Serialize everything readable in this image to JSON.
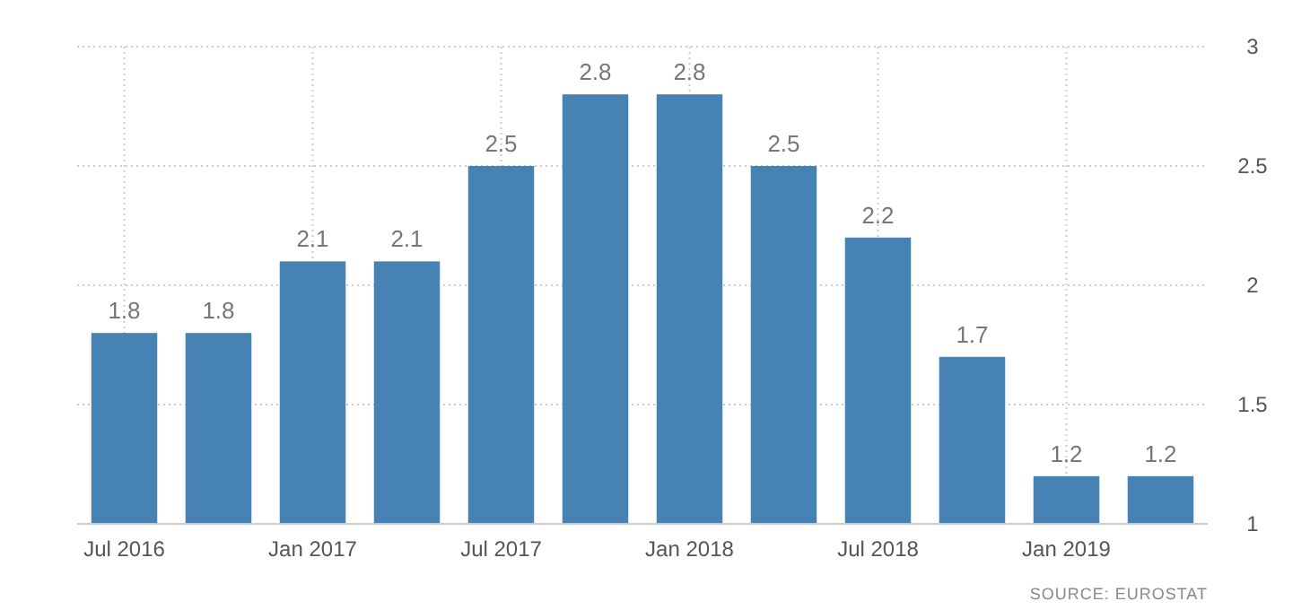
{
  "chart_data": {
    "type": "bar",
    "categories": [
      "Jul 2016",
      null,
      "Jan 2017",
      null,
      "Jul 2017",
      null,
      "Jan 2018",
      null,
      "Jul 2018",
      null,
      "Jan 2019",
      null
    ],
    "values": [
      1.8,
      1.8,
      2.1,
      2.1,
      2.5,
      2.8,
      2.8,
      2.5,
      2.2,
      1.7,
      1.2,
      1.2
    ],
    "color": "#4682b4",
    "ylim": [
      1,
      3
    ],
    "yticks": [
      1,
      1.5,
      2,
      2.5,
      3
    ],
    "grid": true,
    "data_labels": true,
    "annotations": [
      "SOURCE: EUROSTAT"
    ]
  }
}
